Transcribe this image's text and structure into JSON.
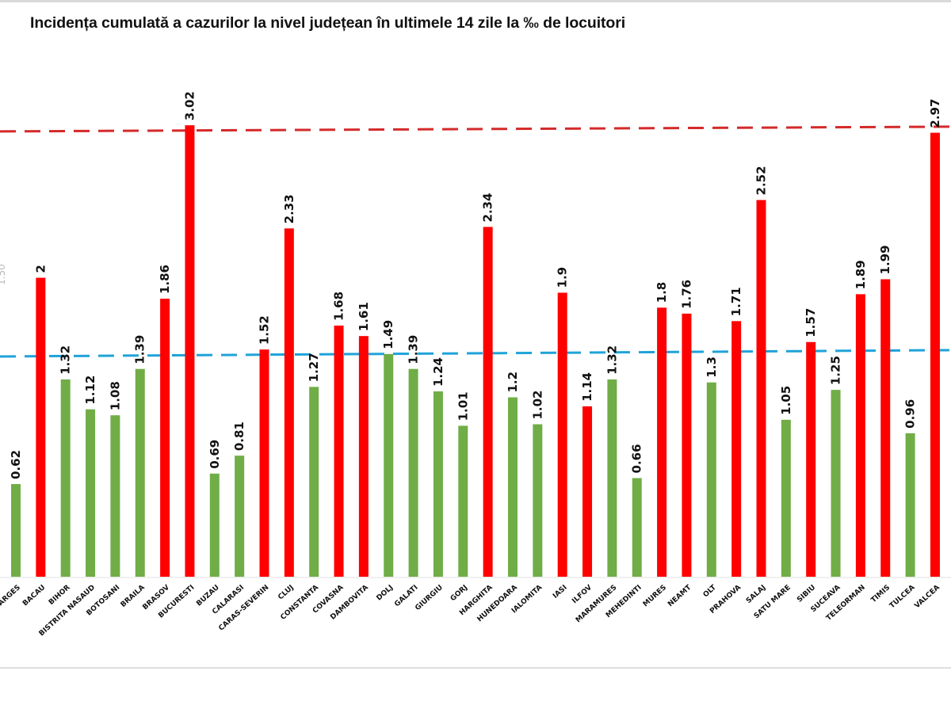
{
  "chart_data": {
    "type": "bar",
    "title": "Incidența cumulată a cazurilor la nivel județean în ultimele 14 zile la ‰ de locuitori",
    "xlabel": "",
    "ylabel": "",
    "ylim": [
      0,
      3.1
    ],
    "grid": false,
    "legend": "none",
    "categories": [
      "ARGES",
      "BACAU",
      "BIHOR",
      "BISTRITA NASAUD",
      "BOTOSANI",
      "BRAILA",
      "BRASOV",
      "BUCURESTI",
      "BUZAU",
      "CALARASI",
      "CARAS-SEVERIN",
      "CLUJ",
      "CONSTANTA",
      "COVASNA",
      "DAMBOVITA",
      "DOLJ",
      "GALATI",
      "GIURGIU",
      "GORJ",
      "HARGHITA",
      "HUNEDOARA",
      "IALOMITA",
      "IASI",
      "ILFOV",
      "MARAMURES",
      "MEHEDINTI",
      "MURES",
      "NEAMT",
      "OLT",
      "PRAHOVA",
      "SALAJ",
      "SATU MARE",
      "SIBIU",
      "SUCEAVA",
      "TELEORMAN",
      "TIMIS",
      "TULCEA",
      "VALCEA"
    ],
    "values": [
      0.62,
      2,
      1.32,
      1.12,
      1.08,
      1.39,
      1.86,
      3.02,
      0.69,
      0.81,
      1.52,
      2.33,
      1.27,
      1.68,
      1.61,
      1.49,
      1.39,
      1.24,
      1.01,
      2.34,
      1.2,
      1.02,
      1.9,
      1.14,
      1.32,
      0.66,
      1.8,
      1.76,
      1.3,
      1.71,
      2.52,
      1.05,
      1.57,
      1.25,
      1.89,
      1.99,
      0.96,
      2.97
    ],
    "value_labels": [
      "0.62",
      "2",
      "1.32",
      "1.12",
      "1.08",
      "1.39",
      "1.86",
      "3.02",
      "0.69",
      "0.81",
      "1.52",
      "2.33",
      "1.27",
      "1.68",
      "1.61",
      "1.49",
      "1.39",
      "1.24",
      "1.01",
      "2.34",
      "1.2",
      "1.02",
      "1.9",
      "1.14",
      "1.32",
      "0.66",
      "1.8",
      "1.76",
      "1.3",
      "1.71",
      "2.52",
      "1.05",
      "1.57",
      "1.25",
      "1.89",
      "1.99",
      "0.96",
      "2.97"
    ],
    "bar_colors": [
      "green",
      "red",
      "green",
      "green",
      "green",
      "green",
      "red",
      "red",
      "green",
      "green",
      "red",
      "red",
      "green",
      "red",
      "red",
      "green",
      "green",
      "green",
      "green",
      "red",
      "green",
      "green",
      "red",
      "red",
      "green",
      "green",
      "red",
      "red",
      "green",
      "red",
      "red",
      "green",
      "red",
      "green",
      "red",
      "red",
      "green",
      "red"
    ],
    "truncated_last_category": "VA",
    "reference_lines": [
      {
        "name": "threshold-3",
        "value": 3.0,
        "color": "#d42a2a",
        "style": "dashed"
      },
      {
        "name": "threshold-1.5",
        "value": 1.5,
        "color": "#1fa3d9",
        "style": "dashed"
      }
    ]
  },
  "colors": {
    "green": "#70ad47",
    "red": "#ff0000"
  },
  "edge_label": "1.50"
}
